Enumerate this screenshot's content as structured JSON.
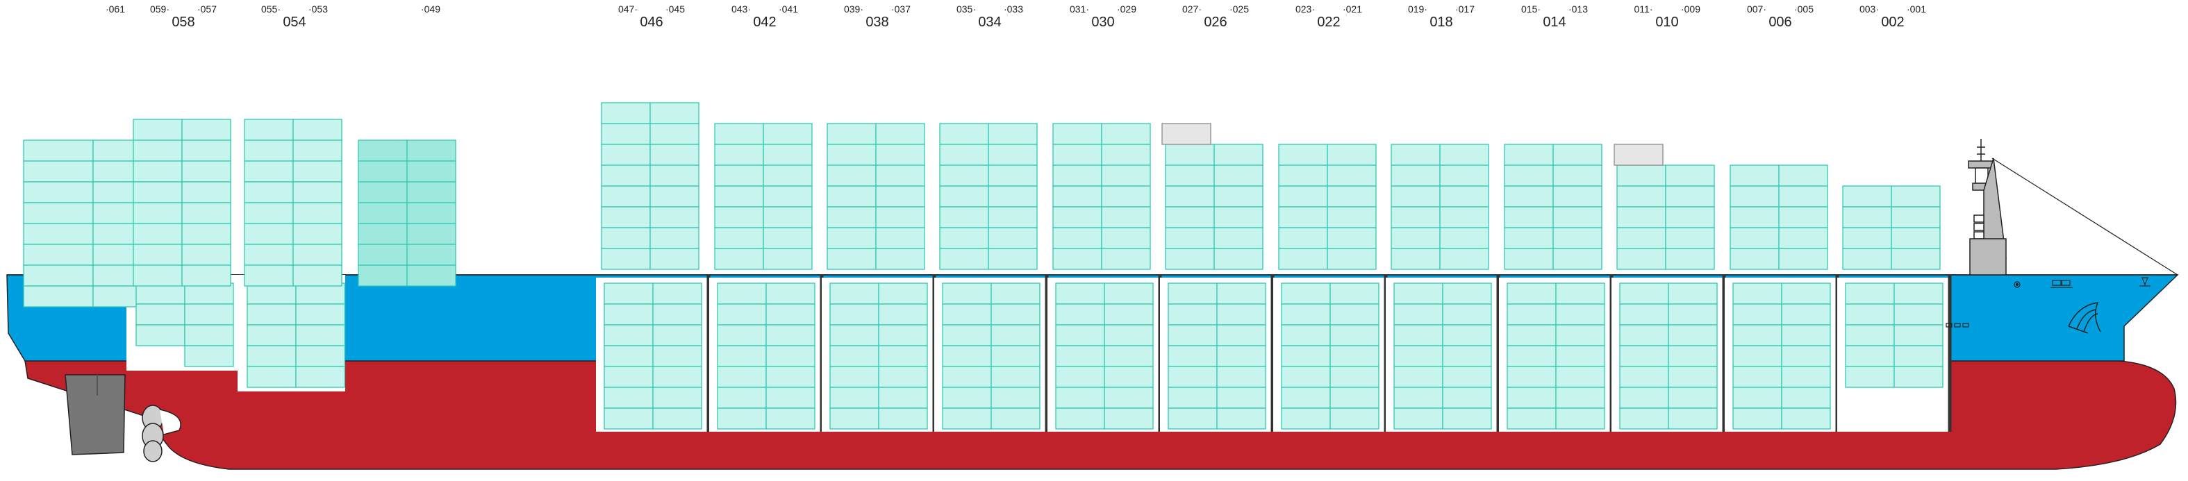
{
  "diagram": {
    "colors": {
      "hull_red": "#c0222c",
      "hull_blue": "#00a0e0",
      "container_fill": "#c8f4ee",
      "container_fill_dark": "#9ee8de",
      "container_stroke": "#33c9b4",
      "hatch_cover": "#e6e6e6"
    },
    "bays": [
      {
        "id": "bay-061",
        "main": "",
        "left": "",
        "right": "061"
      },
      {
        "id": "bay-058",
        "main": "058",
        "left": "059",
        "right": "057"
      },
      {
        "id": "bay-054",
        "main": "054",
        "left": "055",
        "right": "053"
      },
      {
        "id": "bay-049",
        "main": "",
        "left": "",
        "right": "049"
      },
      {
        "id": "bay-046",
        "main": "046",
        "left": "047",
        "right": "045"
      },
      {
        "id": "bay-042",
        "main": "042",
        "left": "043",
        "right": "041"
      },
      {
        "id": "bay-038",
        "main": "038",
        "left": "039",
        "right": "037"
      },
      {
        "id": "bay-034",
        "main": "034",
        "left": "035",
        "right": "033"
      },
      {
        "id": "bay-030",
        "main": "030",
        "left": "031",
        "right": "029"
      },
      {
        "id": "bay-026",
        "main": "026",
        "left": "027",
        "right": "025"
      },
      {
        "id": "bay-022",
        "main": "022",
        "left": "023",
        "right": "021"
      },
      {
        "id": "bay-018",
        "main": "018",
        "left": "019",
        "right": "017"
      },
      {
        "id": "bay-014",
        "main": "014",
        "left": "015",
        "right": "013"
      },
      {
        "id": "bay-010",
        "main": "010",
        "left": "011",
        "right": "009"
      },
      {
        "id": "bay-006",
        "main": "006",
        "left": "007",
        "right": "005"
      },
      {
        "id": "bay-002",
        "main": "002",
        "left": "003",
        "right": "001"
      }
    ]
  }
}
